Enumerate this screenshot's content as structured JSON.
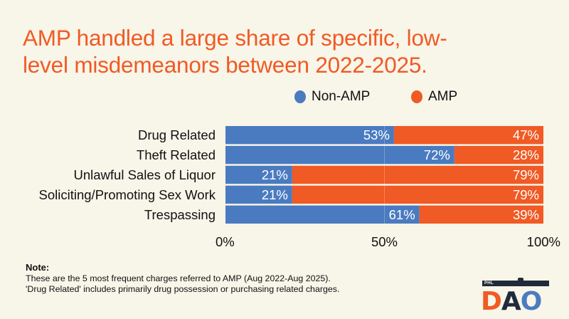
{
  "title": "AMP handled a large share of specific, low-level misdemeanors between 2022-2025.",
  "title_lines": [
    "AMP handled a large share of specific, low-",
    "level misdemeanors between 2022-2025."
  ],
  "colors": {
    "non_amp": "#4a7bc0",
    "amp": "#f05a24",
    "title": "#f05a24",
    "background": "#f8f5e9",
    "logo_dark": "#1f2b3a"
  },
  "chart_data": {
    "type": "bar",
    "orientation": "horizontal",
    "stacked": true,
    "title": "AMP handled a large share of specific, low-level misdemeanors between 2022-2025.",
    "categories": [
      "Drug Related",
      "Theft Related",
      "Unlawful Sales of Liquor",
      "Soliciting/Promoting Sex Work",
      "Trespassing"
    ],
    "series": [
      {
        "name": "Non-AMP",
        "values": [
          53,
          72,
          21,
          21,
          61
        ],
        "labels": [
          "53%",
          "72%",
          "21%",
          "21%",
          "61%"
        ]
      },
      {
        "name": "AMP",
        "values": [
          47,
          28,
          79,
          79,
          39
        ],
        "labels": [
          "47%",
          "28%",
          "79%",
          "79%",
          "39%"
        ]
      }
    ],
    "xlim": [
      0,
      100
    ],
    "xticks": [
      0,
      50,
      100
    ],
    "xtick_labels": [
      "0%",
      "50%",
      "100%"
    ],
    "xlabel": "",
    "ylabel": "",
    "legend": {
      "entries": [
        "Non-AMP",
        "AMP"
      ],
      "placement": "top-center"
    },
    "grid": true
  },
  "note": {
    "heading": "Note:",
    "lines": [
      "These are the 5 most frequent charges referred to AMP (Aug 2022-Aug 2025).",
      "'Drug Related' includes primarily drug possession or purchasing related charges."
    ]
  },
  "logo": {
    "small_text": "PHL",
    "letters": [
      "D",
      "A",
      "O"
    ]
  }
}
